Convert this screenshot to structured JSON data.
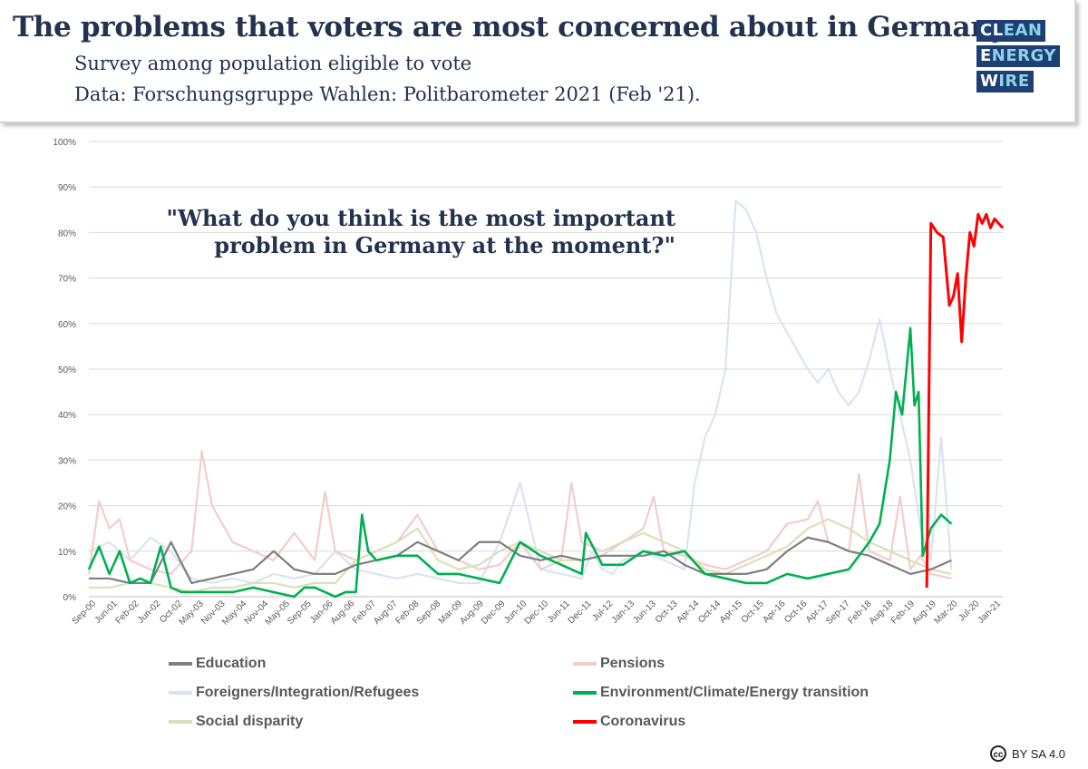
{
  "header": {
    "title": "The problems that voters are most concerned about in Germany.",
    "subtitle": "Survey among population eligible to vote",
    "source": "Data: Forschungsgruppe Wahlen: Politbarometer 2021 (Feb '21)."
  },
  "logo": {
    "line1a": "CL",
    "line1b": "EAN",
    "line2a": "E",
    "line2b": "NERGY",
    "line3a": "W",
    "line3b": "IRE"
  },
  "annotation": {
    "line1": "\"What do you think is the most important",
    "line2": "problem in Germany at the moment?\""
  },
  "license": {
    "icon": "cc-icon",
    "text": "BY SA 4.0"
  },
  "chart_data": {
    "type": "line",
    "xlabel": "",
    "ylabel": "",
    "ylim": [
      0,
      100
    ],
    "yticks": [
      "0%",
      "10%",
      "20%",
      "30%",
      "40%",
      "50%",
      "60%",
      "70%",
      "80%",
      "90%",
      "100%"
    ],
    "xticks": [
      "Sep-00",
      "Jun-01",
      "Feb-02",
      "Jun-02",
      "Oct-02",
      "May-03",
      "Nov-03",
      "May-04",
      "Nov-04",
      "May-05",
      "Sep-05",
      "Jan-06",
      "Aug-06",
      "Feb-07",
      "Aug-07",
      "Feb-08",
      "Sep-08",
      "Mar-09",
      "Aug-09",
      "Dec-09",
      "Jun-10",
      "Dec-10",
      "Jun-11",
      "Dec-11",
      "Jul-12",
      "Jan-13",
      "Jun-13",
      "Oct-13",
      "Apr-14",
      "Oct-14",
      "Apr-15",
      "Oct-15",
      "Apr-16",
      "Oct-16",
      "Apr-17",
      "Sep-17",
      "Feb-18",
      "Aug-18",
      "Feb-19",
      "Aug-19",
      "Mar-20",
      "Jul-20",
      "Jan-21"
    ],
    "grid": true,
    "legend_position": "bottom",
    "colors": {
      "Education": "#7f7f7f",
      "Pensions": "#f4cccc",
      "Foreigners/Integration/Refugees": "#dae3f3",
      "Environment/Climate/Energy transition": "#00b050",
      "Social disparity": "#d6e2b7",
      "Coronavirus": "#ff0000"
    },
    "series": [
      {
        "name": "Foreigners/Integration/Refugees",
        "x": [
          0,
          1,
          2,
          3,
          4,
          5,
          6,
          7,
          8,
          9,
          10,
          11,
          12,
          13,
          14,
          15,
          16,
          17,
          18,
          19,
          20,
          21,
          22,
          23,
          24,
          24.5,
          25,
          25.5,
          26,
          27,
          28,
          29,
          29.5,
          30,
          30.5,
          31,
          31.5,
          32,
          32.5,
          33,
          33.5,
          34,
          35,
          35.5,
          36,
          36.5,
          37,
          37.5,
          38,
          38.5,
          39,
          39.5,
          40,
          40.5,
          41,
          41.5,
          42
        ],
        "y": [
          10,
          12,
          8,
          13,
          10,
          4,
          3,
          4,
          3,
          5,
          4,
          5,
          10,
          6,
          5,
          4,
          5,
          4,
          3,
          3,
          12,
          25,
          6,
          5,
          4,
          10,
          6,
          5,
          8,
          10,
          8,
          6,
          25,
          35,
          40,
          50,
          87,
          85,
          80,
          70,
          62,
          58,
          50,
          47,
          50,
          45,
          42,
          45,
          52,
          61,
          50,
          40,
          30,
          15,
          8,
          35,
          6
        ]
      },
      {
        "name": "Pensions",
        "x": [
          0,
          0.5,
          1,
          1.5,
          2,
          3,
          4,
          5,
          5.5,
          6,
          7,
          8,
          9,
          10,
          11,
          11.5,
          12,
          13,
          14,
          15,
          16,
          17,
          18,
          19,
          20,
          21,
          22,
          23,
          23.5,
          24,
          25,
          26,
          27,
          27.5,
          28,
          29,
          30,
          31,
          32,
          33,
          34,
          35,
          35.5,
          36,
          37,
          37.5,
          38,
          39,
          39.5,
          40,
          40.5,
          41,
          42
        ],
        "y": [
          5,
          21,
          15,
          17,
          8,
          6,
          5,
          10,
          32,
          20,
          12,
          10,
          8,
          14,
          8,
          23,
          10,
          8,
          10,
          12,
          18,
          10,
          8,
          6,
          7,
          12,
          6,
          8,
          25,
          12,
          10,
          12,
          15,
          22,
          10,
          9,
          7,
          6,
          8,
          10,
          16,
          17,
          21,
          12,
          10,
          27,
          10,
          8,
          22,
          6,
          9,
          5,
          4
        ]
      },
      {
        "name": "Social disparity",
        "x": [
          0,
          1,
          2,
          3,
          4,
          5,
          6,
          7,
          8,
          9,
          10,
          11,
          12,
          13,
          14,
          15,
          16,
          17,
          18,
          19,
          20,
          21,
          22,
          23,
          24,
          25,
          26,
          27,
          28,
          29,
          30,
          31,
          32,
          33,
          34,
          35,
          36,
          37,
          38,
          39,
          40,
          41,
          42
        ],
        "y": [
          2,
          2,
          3,
          3,
          2,
          1,
          2,
          2,
          3,
          3,
          2,
          3,
          3,
          8,
          10,
          12,
          15,
          8,
          6,
          7,
          10,
          12,
          10,
          8,
          8,
          9,
          12,
          14,
          12,
          10,
          6,
          5,
          7,
          9,
          11,
          15,
          17,
          15,
          12,
          10,
          8,
          6,
          5
        ]
      },
      {
        "name": "Education",
        "x": [
          0,
          1,
          2,
          3,
          4,
          5,
          6,
          7,
          8,
          9,
          10,
          11,
          12,
          13,
          14,
          15,
          16,
          17,
          18,
          19,
          20,
          21,
          22,
          23,
          24,
          25,
          26,
          27,
          28,
          29,
          30,
          31,
          32,
          33,
          34,
          35,
          36,
          37,
          38,
          39,
          40,
          41,
          42
        ],
        "y": [
          4,
          4,
          3,
          3,
          12,
          3,
          4,
          5,
          6,
          10,
          6,
          5,
          5,
          7,
          8,
          9,
          12,
          10,
          8,
          12,
          12,
          9,
          8,
          9,
          8,
          9,
          9,
          9,
          10,
          7,
          5,
          5,
          5,
          6,
          10,
          13,
          12,
          10,
          9,
          7,
          5,
          6,
          8
        ]
      },
      {
        "name": "Environment/Climate/Energy transition",
        "x": [
          0,
          0.5,
          1,
          1.5,
          2,
          2.5,
          3,
          3.5,
          4,
          4.5,
          5,
          5.5,
          6,
          7,
          8,
          9,
          10,
          10.5,
          11,
          11.5,
          12,
          12.5,
          13,
          13.3,
          13.6,
          14,
          15,
          16,
          17,
          18,
          19,
          20,
          21,
          22,
          23,
          24,
          24.2,
          25,
          26,
          27,
          28,
          29,
          30,
          31,
          32,
          33,
          34,
          35,
          36,
          37,
          38,
          38.5,
          39,
          39.3,
          39.6,
          40,
          40.2,
          40.4,
          40.6,
          41,
          41.5,
          42
        ],
        "y": [
          6,
          11,
          5,
          10,
          3,
          4,
          3,
          11,
          2,
          1,
          1,
          1,
          1,
          1,
          2,
          1,
          0,
          2,
          2,
          1,
          0,
          1,
          1,
          18,
          10,
          8,
          9,
          9,
          5,
          5,
          4,
          3,
          12,
          9,
          7,
          5,
          14,
          7,
          7,
          10,
          9,
          10,
          5,
          4,
          3,
          3,
          5,
          4,
          5,
          6,
          12,
          16,
          30,
          45,
          40,
          59,
          42,
          45,
          9,
          15,
          18,
          16
        ]
      },
      {
        "name": "Coronavirus",
        "x": [
          40.8,
          41,
          41.3,
          41.6,
          41.9,
          42.1,
          42.3,
          42.5,
          42.7,
          42.9,
          43.1,
          43.3,
          43.5,
          43.7,
          43.9,
          44.1,
          44.3,
          44.5
        ],
        "y": [
          2,
          82,
          80,
          79,
          64,
          66,
          71,
          56,
          70,
          80,
          77,
          84,
          82,
          84,
          81,
          83,
          82,
          81
        ]
      }
    ]
  }
}
